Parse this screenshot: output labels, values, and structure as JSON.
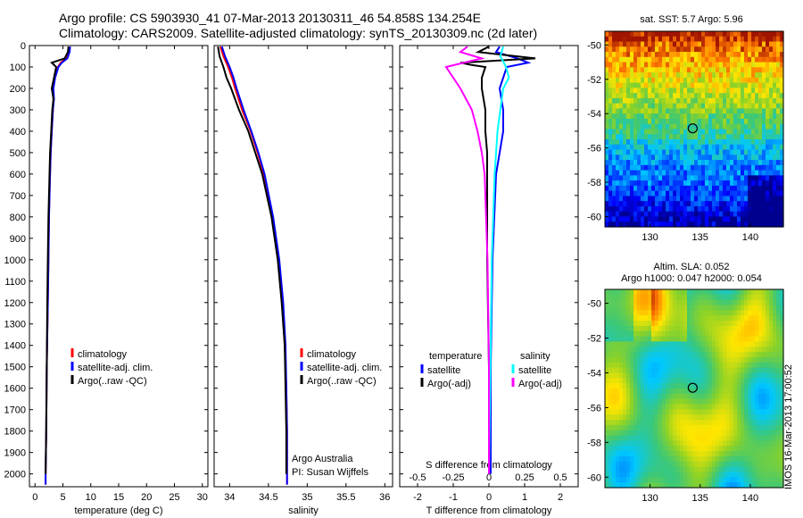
{
  "header": {
    "line1": "Argo profile: CS 5903930_41 07-Mar-2013 20130311_46 54.858S 134.254E",
    "line2": "Climatology: CARS2009. Satellite-adjusted climatology: synTS_20130309.nc (2d later)"
  },
  "colors": {
    "red": "#ff0000",
    "blue": "#0000ff",
    "black": "#000000",
    "cyan": "#00ffff",
    "magenta": "#ff00ff"
  },
  "chart_data": [
    {
      "id": "temperature",
      "type": "line",
      "xlabel": "temperature (deg C)",
      "xlim": [
        -1,
        31
      ],
      "xticks": [
        0,
        5,
        10,
        15,
        20,
        25,
        30
      ],
      "xtick_labels": [
        "0",
        "5",
        "10",
        "15",
        "20",
        "25",
        "30"
      ],
      "ylim": [
        2060,
        0
      ],
      "yticks": [
        0,
        100,
        200,
        300,
        400,
        500,
        600,
        700,
        800,
        900,
        1000,
        1100,
        1200,
        1300,
        1400,
        1500,
        1600,
        1700,
        1800,
        1900,
        2000
      ],
      "ytick_labels": [
        "0",
        "100",
        "200",
        "300",
        "400",
        "500",
        "600",
        "700",
        "800",
        "900",
        "1000",
        "1100",
        "1200",
        "1300",
        "1400",
        "1500",
        "1600",
        "1700",
        "1800",
        "1900",
        "2000"
      ],
      "legend": [
        "climatology",
        "satellite-adj. clim.",
        "Argo(..raw -QC)"
      ],
      "series": [
        {
          "name": "climatology",
          "color": "red",
          "depth": [
            5,
            30,
            60,
            80,
            100,
            150,
            200,
            250,
            300,
            400,
            500,
            600,
            800,
            1000,
            1200,
            1500,
            1800,
            2000,
            2050
          ],
          "values": [
            6.0,
            6.0,
            5.6,
            4.6,
            4.1,
            3.5,
            3.2,
            3.3,
            3.2,
            3.0,
            2.8,
            2.7,
            2.5,
            2.4,
            2.3,
            2.1,
            2.0,
            1.9,
            1.9
          ]
        },
        {
          "name": "satellite-adj. clim.",
          "color": "blue",
          "depth": [
            5,
            30,
            60,
            80,
            100,
            150,
            200,
            250,
            300,
            400,
            500,
            600,
            800,
            1000,
            1200,
            1500,
            1800,
            2000,
            2050
          ],
          "values": [
            6.3,
            6.2,
            5.8,
            4.8,
            4.2,
            3.6,
            3.3,
            3.4,
            3.2,
            3.0,
            2.8,
            2.7,
            2.5,
            2.4,
            2.3,
            2.1,
            2.0,
            1.9,
            1.9
          ]
        },
        {
          "name": "Argo(..raw -QC)",
          "color": "black",
          "depth": [
            5,
            30,
            60,
            80,
            100,
            150,
            200,
            250,
            300,
            400,
            500,
            600,
            800,
            1000,
            1200,
            1500,
            1800,
            2000
          ],
          "values": [
            6.0,
            5.9,
            5.3,
            3.0,
            3.8,
            3.4,
            3.0,
            3.3,
            3.1,
            2.9,
            2.7,
            2.6,
            2.4,
            2.3,
            2.2,
            2.1,
            2.0,
            1.9
          ]
        }
      ]
    },
    {
      "id": "salinity",
      "type": "line",
      "xlabel": "salinity",
      "xlim": [
        33.8,
        36.1
      ],
      "xticks": [
        34,
        34.5,
        35,
        35.5,
        36
      ],
      "xtick_labels": [
        "34",
        "34.5",
        "35",
        "35.5",
        "36"
      ],
      "ylim": [
        2060,
        0
      ],
      "legend": [
        "climatology",
        "satellite-adj. clim.",
        "Argo(..raw -QC)"
      ],
      "annotations": [
        "Argo Australia",
        "PI: Susan Wijffels"
      ],
      "series": [
        {
          "name": "climatology",
          "color": "red",
          "depth": [
            5,
            50,
            100,
            150,
            200,
            300,
            400,
            500,
            600,
            800,
            1000,
            1200,
            1400,
            1600,
            1800,
            2050
          ],
          "values": [
            33.88,
            33.92,
            33.98,
            34.03,
            34.07,
            34.16,
            34.27,
            34.36,
            34.44,
            34.55,
            34.63,
            34.68,
            34.71,
            34.73,
            34.74,
            34.74
          ]
        },
        {
          "name": "satellite-adj. clim.",
          "color": "blue",
          "depth": [
            5,
            50,
            100,
            150,
            200,
            300,
            400,
            500,
            600,
            800,
            1000,
            1200,
            1400,
            1600,
            1800,
            2050
          ],
          "values": [
            33.9,
            33.94,
            34.0,
            34.05,
            34.09,
            34.18,
            34.28,
            34.37,
            34.45,
            34.56,
            34.64,
            34.69,
            34.72,
            34.73,
            34.74,
            34.74
          ]
        },
        {
          "name": "Argo(..raw -QC)",
          "color": "black",
          "depth": [
            5,
            50,
            100,
            150,
            200,
            300,
            400,
            500,
            600,
            800,
            1000,
            1200,
            1400,
            1600,
            1800,
            2000
          ],
          "values": [
            33.85,
            33.87,
            33.92,
            33.96,
            34.02,
            34.12,
            34.24,
            34.33,
            34.42,
            34.54,
            34.62,
            34.67,
            34.71,
            34.72,
            34.73,
            34.73
          ]
        }
      ]
    },
    {
      "id": "differences",
      "type": "line",
      "xlabel": "T difference from climatology",
      "xlim": [
        -2.5,
        2.5
      ],
      "xticks": [
        -2,
        -1,
        0,
        1,
        2
      ],
      "xtick_labels": [
        "-2",
        "-1",
        "0",
        "1",
        "2"
      ],
      "top_label": "S difference from climatology",
      "top_xticks": [
        -0.5,
        -0.25,
        0,
        0.25,
        0.5
      ],
      "top_xtick_labels": [
        "-0.5",
        "-0.25",
        "0",
        "0.25",
        "0.5"
      ],
      "ylim": [
        2060,
        0
      ],
      "legend_titles": [
        "temperature",
        "salinity"
      ],
      "legend": [
        "satellite",
        "Argo(-adj)",
        "satellite",
        "Argo(-adj)"
      ],
      "series": [
        {
          "name": "satellite",
          "group": "temperature",
          "color": "blue",
          "depth": [
            5,
            30,
            60,
            80,
            100,
            150,
            200,
            300,
            400,
            500,
            600,
            800,
            1000,
            1500,
            2000
          ],
          "values": [
            0.3,
            0.2,
            0.8,
            1.1,
            0.5,
            0.4,
            0.3,
            0.4,
            0.4,
            0.3,
            0.2,
            0.15,
            0.1,
            0.05,
            0.05
          ]
        },
        {
          "name": "Argo(-adj)",
          "group": "temperature",
          "color": "black",
          "depth": [
            5,
            30,
            60,
            80,
            90,
            100,
            150,
            200,
            300,
            400,
            500,
            600,
            800,
            1000,
            1500,
            2000
          ],
          "values": [
            0.0,
            -0.3,
            1.3,
            -0.8,
            -0.5,
            -0.1,
            -0.2,
            -0.2,
            -0.1,
            -0.1,
            -0.05,
            -0.05,
            -0.05,
            -0.05,
            0.0,
            0.0
          ]
        },
        {
          "name": "satellite",
          "group": "salinity",
          "color": "cyan",
          "depth": [
            5,
            50,
            100,
            150,
            200,
            300,
            400,
            500,
            600,
            800,
            1000,
            1500,
            2000
          ],
          "values": [
            0.1,
            0.08,
            0.12,
            0.14,
            0.1,
            0.08,
            0.06,
            0.05,
            0.04,
            0.03,
            0.02,
            0.01,
            0.0
          ]
        },
        {
          "name": "Argo(-adj)",
          "group": "salinity",
          "color": "magenta",
          "depth": [
            5,
            30,
            60,
            100,
            150,
            200,
            300,
            400,
            500,
            600,
            800,
            1000,
            1500,
            2000
          ],
          "values": [
            -0.15,
            -0.2,
            -0.05,
            -0.3,
            -0.25,
            -0.2,
            -0.12,
            -0.08,
            -0.05,
            -0.03,
            -0.02,
            -0.01,
            0.0,
            0.0
          ]
        }
      ]
    },
    {
      "id": "sst_map",
      "type": "heatmap",
      "title": "sat. SST: 5.7 Argo: 5.96",
      "xlim": [
        125.5,
        143.3
      ],
      "ylim": [
        -60.6,
        -49.2
      ],
      "xticks": [
        130,
        135,
        140
      ],
      "xtick_labels": [
        "130",
        "135",
        "140"
      ],
      "yticks": [
        -50,
        -52,
        -54,
        -56,
        -58,
        -60
      ],
      "ytick_labels": [
        "-50",
        "-52",
        "-54",
        "-56",
        "-58",
        "-60"
      ],
      "marker": {
        "lon": 134.254,
        "lat": -54.858
      }
    },
    {
      "id": "sla_map",
      "type": "heatmap",
      "title": "Altim. SLA: 0.052",
      "subtitle": "Argo h1000: 0.047 h2000: 0.054",
      "xlim": [
        125.5,
        143.3
      ],
      "ylim": [
        -60.6,
        -49.2
      ],
      "xticks": [
        130,
        135,
        140
      ],
      "xtick_labels": [
        "130",
        "135",
        "140"
      ],
      "yticks": [
        -50,
        -52,
        -54,
        -56,
        -58,
        -60
      ],
      "ytick_labels": [
        "-50",
        "-52",
        "-54",
        "-56",
        "-58",
        "-60"
      ],
      "marker": {
        "lon": 134.254,
        "lat": -54.858
      }
    }
  ],
  "stamp": "IMOS 16-Mar-2013 17:00:52"
}
